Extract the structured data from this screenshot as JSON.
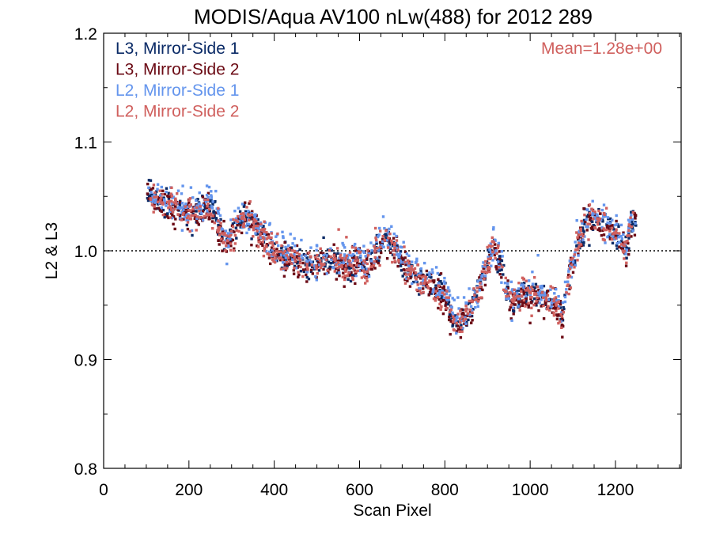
{
  "chart_data": {
    "type": "scatter",
    "title": "MODIS/Aqua AV100 nLw(488) for 2012 289",
    "xlabel": "Scan Pixel",
    "ylabel": "L2 & L3",
    "xlim": [
      0,
      1354
    ],
    "ylim": [
      0.8,
      1.2
    ],
    "xticks": [
      0,
      200,
      400,
      600,
      800,
      1000,
      1200
    ],
    "xtick_labels": [
      "0",
      "200",
      "400",
      "600",
      "800",
      "1000",
      "1200"
    ],
    "yticks": [
      0.8,
      0.9,
      1.0,
      1.1,
      1.2
    ],
    "ytick_labels": [
      "0.8",
      "0.9",
      "1.0",
      "1.1",
      "1.2"
    ],
    "reference_line": {
      "y": 1.0,
      "style": "dotted"
    },
    "annotation": {
      "text": "Mean=1.28e+00",
      "color": "#d0605e",
      "position": "top-right"
    },
    "legend_position": "top-left",
    "grid": false,
    "profile": {
      "x": [
        100,
        110,
        130,
        160,
        190,
        215,
        240,
        260,
        275,
        290,
        305,
        320,
        340,
        360,
        380,
        400,
        430,
        460,
        490,
        520,
        550,
        580,
        600,
        620,
        640,
        660,
        680,
        700,
        720,
        740,
        760,
        780,
        800,
        820,
        840,
        860,
        880,
        900,
        915,
        930,
        945,
        960,
        980,
        1000,
        1020,
        1040,
        1060,
        1075,
        1090,
        1110,
        1130,
        1150,
        1170,
        1190,
        1210,
        1225,
        1235,
        1250
      ],
      "y": [
        1.06,
        1.05,
        1.045,
        1.04,
        1.035,
        1.035,
        1.04,
        1.035,
        1.02,
        1.005,
        1.02,
        1.03,
        1.03,
        1.02,
        1.01,
        1.0,
        0.995,
        0.99,
        0.988,
        0.992,
        0.99,
        0.985,
        0.99,
        0.985,
        1.0,
        1.015,
        1.005,
        0.99,
        0.98,
        0.975,
        0.97,
        0.965,
        0.96,
        0.935,
        0.935,
        0.945,
        0.965,
        0.99,
        1.005,
        0.985,
        0.96,
        0.955,
        0.96,
        0.96,
        0.958,
        0.955,
        0.955,
        0.94,
        0.975,
        1.005,
        1.025,
        1.03,
        1.025,
        1.02,
        1.01,
        1.0,
        1.025,
        1.03
      ]
    },
    "series": [
      {
        "name": "L3, Mirror-Side 1",
        "color": "#0a2a66",
        "dy": 0.0,
        "jitter": 0.009,
        "seed": 11
      },
      {
        "name": "L3, Mirror-Side 2",
        "color": "#6b0a14",
        "dy": -0.002,
        "jitter": 0.011,
        "seed": 23
      },
      {
        "name": "L2, Mirror-Side 1",
        "color": "#6495ed",
        "dy": 0.004,
        "jitter": 0.012,
        "seed": 37
      },
      {
        "name": "L2, Mirror-Side 2",
        "color": "#d0605e",
        "dy": 0.0,
        "jitter": 0.011,
        "seed": 53
      }
    ],
    "point_range": [
      102,
      1248
    ],
    "points_per_series": 640
  }
}
